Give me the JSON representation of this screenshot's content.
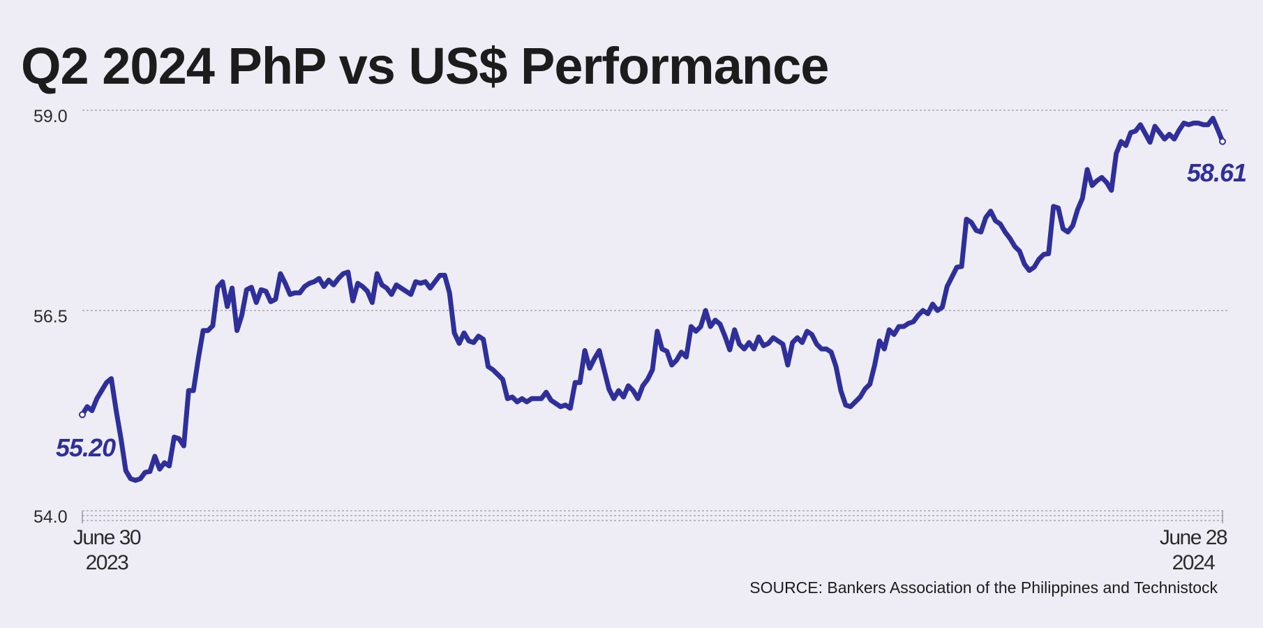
{
  "chart_data": {
    "type": "line",
    "title": "Q2 2024 PhP vs US$ Performance",
    "source": "SOURCE: Bankers Association of the Philippines and Technistock",
    "ylim": [
      54.0,
      59.0
    ],
    "yticks": [
      {
        "value": 59.0,
        "label": "59.0"
      },
      {
        "value": 56.5,
        "label": "56.5"
      },
      {
        "value": 54.0,
        "label": "54.0"
      }
    ],
    "x_labels": {
      "start": [
        "June 30",
        "2023"
      ],
      "end": [
        "June 28",
        "2024"
      ]
    },
    "start_value_label": "55.20",
    "end_value_label": "58.61",
    "grid": true,
    "legend": "none",
    "color": "#2e2f99",
    "x_range": [
      "2023-06-30",
      "2024-06-28"
    ],
    "series": [
      {
        "values": [
          55.2,
          55.3,
          55.25,
          55.4,
          55.5,
          55.6,
          55.65,
          55.25,
          54.9,
          54.5,
          54.4,
          54.38,
          54.4,
          54.48,
          54.49,
          54.68,
          54.52,
          54.6,
          54.56,
          54.92,
          54.9,
          54.81,
          55.5,
          55.5,
          55.9,
          56.25,
          56.25,
          56.31,
          56.79,
          56.86,
          56.55,
          56.78,
          56.25,
          56.44,
          56.76,
          56.79,
          56.6,
          56.76,
          56.74,
          56.61,
          56.64,
          56.96,
          56.84,
          56.7,
          56.72,
          56.72,
          56.8,
          56.84,
          56.86,
          56.9,
          56.8,
          56.88,
          56.82,
          56.9,
          56.96,
          56.98,
          56.62,
          56.84,
          56.8,
          56.74,
          56.6,
          56.96,
          56.82,
          56.78,
          56.7,
          56.82,
          56.78,
          56.74,
          56.7,
          56.86,
          56.84,
          56.86,
          56.78,
          56.86,
          56.94,
          56.94,
          56.72,
          56.22,
          56.09,
          56.22,
          56.12,
          56.1,
          56.18,
          56.14,
          55.8,
          55.76,
          55.7,
          55.64,
          55.4,
          55.42,
          55.36,
          55.4,
          55.36,
          55.4,
          55.4,
          55.4,
          55.48,
          55.38,
          55.34,
          55.3,
          55.32,
          55.28,
          55.6,
          55.6,
          56.0,
          55.78,
          55.9,
          56.0,
          55.76,
          55.52,
          55.4,
          55.5,
          55.42,
          55.56,
          55.5,
          55.4,
          55.56,
          55.64,
          55.76,
          56.24,
          56.02,
          55.99,
          55.82,
          55.88,
          55.98,
          55.92,
          56.3,
          56.24,
          56.3,
          56.5,
          56.3,
          56.38,
          56.33,
          56.18,
          56.01,
          56.26,
          56.08,
          56.02,
          56.1,
          56.02,
          56.17,
          56.06,
          56.09,
          56.16,
          56.12,
          56.08,
          55.82,
          56.1,
          56.16,
          56.1,
          56.24,
          56.2,
          56.08,
          56.02,
          56.02,
          55.98,
          55.8,
          55.5,
          55.32,
          55.3,
          55.36,
          55.42,
          55.52,
          55.58,
          55.82,
          56.12,
          56.02,
          56.26,
          56.2,
          56.3,
          56.3,
          56.34,
          56.36,
          56.44,
          56.5,
          56.46,
          56.58,
          56.5,
          56.54,
          56.8,
          56.92,
          57.04,
          57.05,
          57.64,
          57.6,
          57.5,
          57.48,
          57.66,
          57.74,
          57.62,
          57.58,
          57.48,
          57.4,
          57.3,
          57.24,
          57.08,
          57.0,
          57.04,
          57.14,
          57.2,
          57.21,
          57.8,
          57.78,
          57.52,
          57.48,
          57.56,
          57.76,
          57.9,
          58.26,
          58.06,
          58.12,
          58.16,
          58.1,
          58.0,
          58.46,
          58.61,
          58.56,
          58.72,
          58.74,
          58.82,
          58.71,
          58.6,
          58.8,
          58.72,
          58.64,
          58.7,
          58.64,
          58.75,
          58.84,
          58.82,
          58.84,
          58.84,
          58.82,
          58.82,
          58.9,
          58.76,
          58.61
        ]
      }
    ]
  }
}
